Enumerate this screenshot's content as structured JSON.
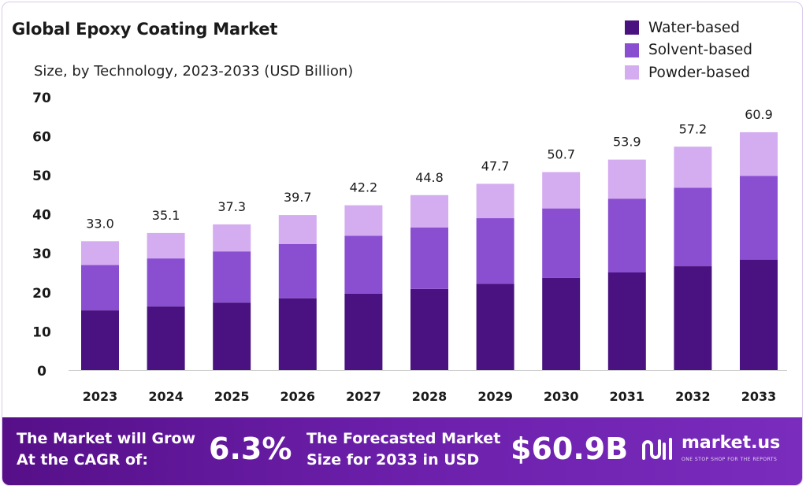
{
  "chart_data": {
    "type": "bar",
    "stacked": true,
    "title": "Global Epoxy Coating Market",
    "subtitle": "Size, by Technology, 2023-2033 (USD Billion)",
    "categories": [
      "2023",
      "2024",
      "2025",
      "2026",
      "2027",
      "2028",
      "2029",
      "2030",
      "2031",
      "2032",
      "2033"
    ],
    "series": [
      {
        "name": "Water-based",
        "color": "#4a1280",
        "values": [
          15.3,
          16.3,
          17.3,
          18.4,
          19.6,
          20.8,
          22.1,
          23.6,
          25.0,
          26.6,
          28.3
        ]
      },
      {
        "name": "Solvent-based",
        "color": "#8a4fd1",
        "values": [
          11.6,
          12.3,
          13.1,
          13.9,
          14.8,
          15.7,
          16.8,
          17.8,
          18.9,
          20.1,
          21.4
        ]
      },
      {
        "name": "Powder-based",
        "color": "#d4acf0",
        "values": [
          6.1,
          6.5,
          6.9,
          7.4,
          7.8,
          8.3,
          8.8,
          9.3,
          10.0,
          10.5,
          11.2
        ]
      }
    ],
    "totals": [
      "33.0",
      "35.1",
      "37.3",
      "39.7",
      "42.2",
      "44.8",
      "47.7",
      "50.7",
      "53.9",
      "57.2",
      "60.9"
    ],
    "yticks": [
      "0",
      "10",
      "20",
      "30",
      "40",
      "50",
      "60",
      "70"
    ],
    "ylim": [
      0,
      70
    ],
    "grid": false,
    "legend_position": "top-right"
  },
  "banner": {
    "cagr_label_line1": "The Market will Grow",
    "cagr_label_line2": "At the CAGR of:",
    "cagr_value": "6.3%",
    "forecast_label_line1": "The Forecasted Market",
    "forecast_label_line2": "Size for 2033 in USD",
    "forecast_value": "$60.9B",
    "brand_name": "market.us",
    "brand_tagline": "ONE STOP SHOP FOR THE REPORTS"
  },
  "icons": {
    "brand_logo": "market-us-logo-icon"
  }
}
